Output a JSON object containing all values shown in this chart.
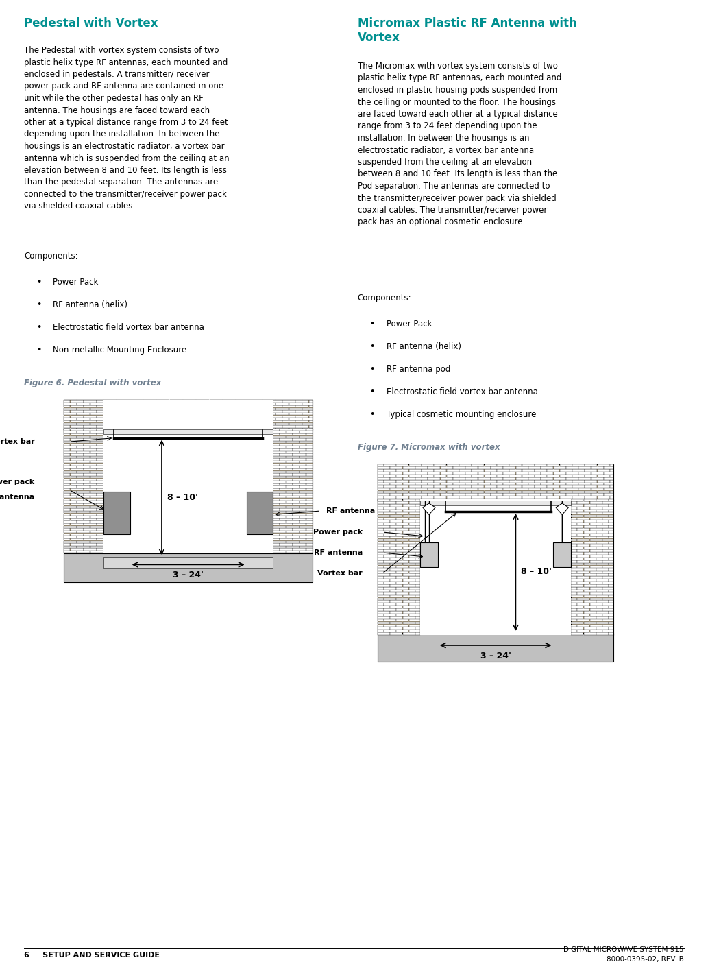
{
  "page_width": 10.33,
  "page_height": 14.16,
  "bg_color": "#ffffff",
  "header_color": "#009090",
  "figure_caption_color": "#708090",
  "text_color": "#000000",
  "title_left": "Pedestal with Vortex",
  "title_right": "Micromax Plastic RF Antenna with\nVortex",
  "body_left": "The Pedestal with vortex system consists of two\nplastic helix type RF antennas, each mounted and\nenclosed in pedestals. A transmitter/ receiver\npower pack and RF antenna are contained in one\nunit while the other pedestal has only an RF\nantenna. The housings are faced toward each\nother at a typical distance range from 3 to 24 feet\ndepending upon the installation. In between the\nhousings is an electrostatic radiator, a vortex bar\nantenna which is suspended from the ceiling at an\nelevation between 8 and 10 feet. Its length is less\nthan the pedestal separation. The antennas are\nconnected to the transmitter/receiver power pack\nvia shielded coaxial cables.",
  "body_right": "The Micromax with vortex system consists of two\nplastic helix type RF antennas, each mounted and\nenclosed in plastic housing pods suspended from\nthe ceiling or mounted to the floor. The housings\nare faced toward each other at a typical distance\nrange from 3 to 24 feet depending upon the\ninstallation. In between the housings is an\nelectrostatic radiator, a vortex bar antenna\nsuspended from the ceiling at an elevation\nbetween 8 and 10 feet. Its length is less than the\nPod separation. The antennas are connected to\nthe transmitter/receiver power pack via shielded\ncoaxial cables. The transmitter/receiver power\npack has an optional cosmetic enclosure.",
  "components_label": "Components:",
  "bullets_left": [
    "Power Pack",
    "RF antenna (helix)",
    "Electrostatic field vortex bar antenna",
    "Non-metallic Mounting Enclosure"
  ],
  "bullets_right": [
    "Power Pack",
    "RF antenna (helix)",
    "RF antenna pod",
    "Electrostatic field vortex bar antenna",
    "Typical cosmetic mounting enclosure"
  ],
  "fig6_caption": "Figure 6. Pedestal with vortex",
  "fig7_caption": "Figure 7. Micromax with vortex",
  "footer_left": "6     SETUP AND SERVICE GUIDE",
  "footer_right_line1": "DIGITAL MICROWAVE SYSTEM 915",
  "footer_right_line2": "8000-0395-02, REV. B",
  "brick_fill": "#d8c8a8",
  "brick_mortar": "#ffffff",
  "gray_antenna": "#909090",
  "floor_color": "#c0c0c0",
  "floor_edge": "#a0a0a0"
}
